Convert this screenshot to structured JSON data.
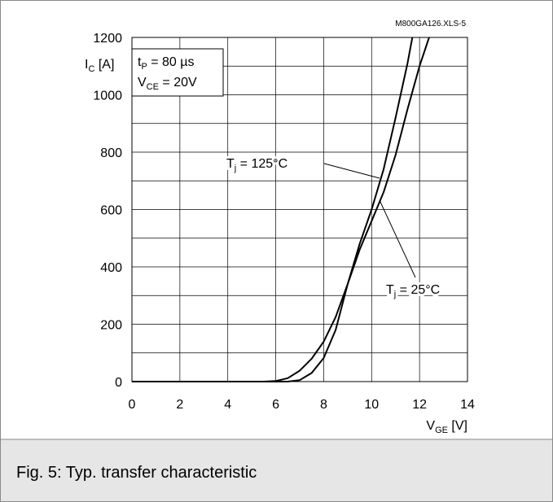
{
  "chart_data": {
    "type": "line",
    "code": "M800GA126.XLS-5",
    "caption": "Fig. 5: Typ. transfer characteristic",
    "ylabel_parts": [
      "I",
      "C",
      " [A]"
    ],
    "xlabel_parts": [
      "V",
      "GE",
      " [V]"
    ],
    "conditions": [
      [
        "t",
        "P",
        " = 80 µs"
      ],
      [
        "V",
        "CE",
        " = 20V"
      ]
    ],
    "xlim": [
      0,
      14
    ],
    "xticks": [
      0,
      2,
      4,
      6,
      8,
      10,
      12,
      14
    ],
    "ylim": [
      0,
      1200
    ],
    "yticks": [
      0,
      200,
      400,
      600,
      800,
      1000,
      1200
    ],
    "y_minor_ticks": [
      100,
      300,
      500,
      700,
      900,
      1100
    ],
    "grid": true,
    "series": [
      {
        "name_parts": [
          "T",
          "j",
          " = 125°C"
        ],
        "color": "#000000",
        "x": [
          0,
          6.5,
          7,
          7.5,
          8,
          8.5,
          9,
          9.5,
          10,
          10.5,
          11,
          11.5,
          11.7
        ],
        "values": [
          0,
          0,
          5,
          30,
          82,
          180,
          340,
          480,
          600,
          740,
          920,
          1110,
          1200
        ]
      },
      {
        "name_parts": [
          "T",
          "j",
          " = 25°C"
        ],
        "color": "#000000",
        "x": [
          0,
          5.5,
          6,
          6.5,
          7,
          7.5,
          8,
          8.5,
          9,
          9.5,
          10,
          10.5,
          11,
          11.5,
          12,
          12.4
        ],
        "values": [
          0,
          0,
          2,
          12,
          38,
          80,
          139,
          225,
          340,
          460,
          560,
          660,
          790,
          950,
          1100,
          1200
        ]
      }
    ]
  }
}
